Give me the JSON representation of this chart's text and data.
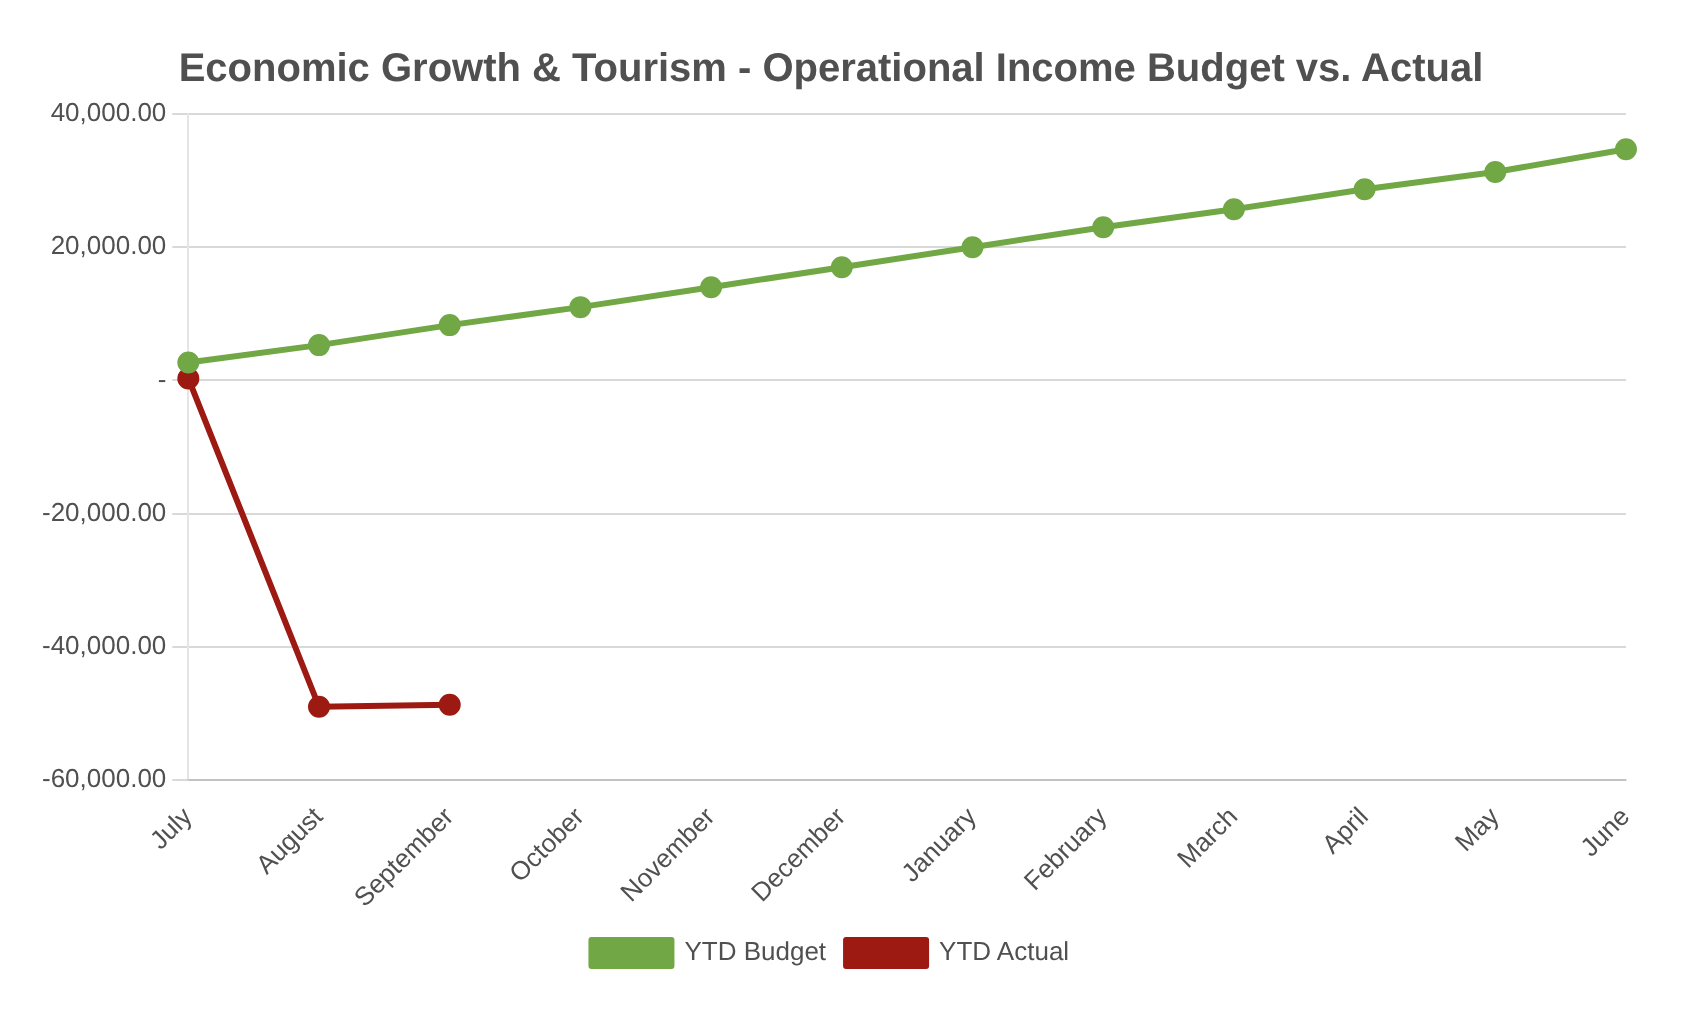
{
  "chart_data": {
    "type": "line",
    "title": "Economic Growth & Tourism - Operational Income Budget vs. Actual",
    "categories": [
      "July",
      "August",
      "September",
      "October",
      "November",
      "December",
      "January",
      "February",
      "March",
      "April",
      "May",
      "June"
    ],
    "series": [
      {
        "name": "YTD Budget",
        "color": "#71a845",
        "values": [
          2700,
          5300,
          8300,
          11000,
          14000,
          17000,
          20000,
          23000,
          25700,
          28700,
          31300,
          34700
        ]
      },
      {
        "name": "YTD Actual",
        "color": "#9c1a12",
        "values": [
          300,
          -49000,
          -48700,
          null,
          null,
          null,
          null,
          null,
          null,
          null,
          null,
          null
        ]
      }
    ],
    "ylim": [
      -60000,
      40000
    ],
    "yticks": [
      {
        "value": -60000,
        "label": "-60,000.00"
      },
      {
        "value": -40000,
        "label": "-40,000.00"
      },
      {
        "value": -20000,
        "label": "-20,000.00"
      },
      {
        "value": 0,
        "label": "-"
      },
      {
        "value": 20000,
        "label": "20,000.00"
      },
      {
        "value": 40000,
        "label": "40,000.00"
      }
    ],
    "grid": "y",
    "legend": "bottom",
    "marker": "circle",
    "line_style": "solid"
  }
}
